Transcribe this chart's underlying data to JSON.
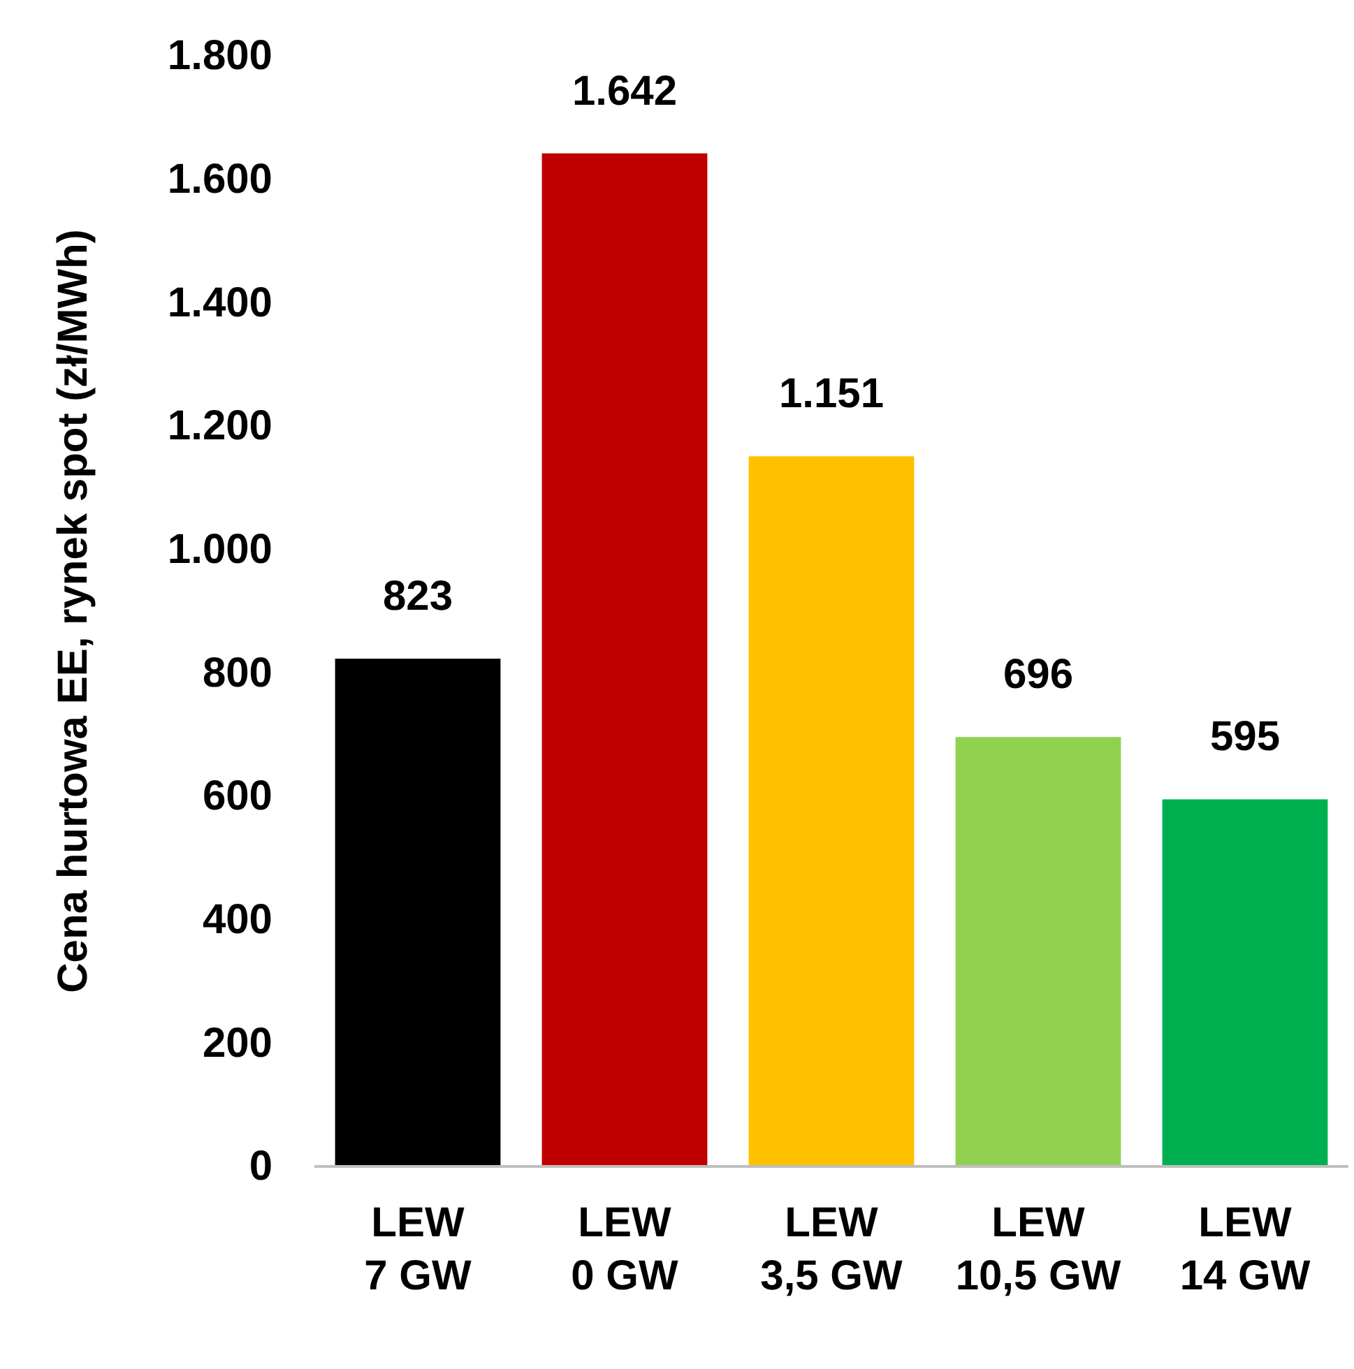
{
  "chart_data": {
    "type": "bar",
    "ylabel": "Cena hurtowa EE, rynek spot (zł/MWh)",
    "categories": [
      "LEW 7 GW",
      "LEW 0 GW",
      "LEW 3,5 GW",
      "LEW 10,5 GW",
      "LEW 14 GW"
    ],
    "values": [
      823,
      1642,
      1151,
      696,
      595
    ],
    "value_labels": [
      "823",
      "1.642",
      "1.151",
      "696",
      "595"
    ],
    "colors": [
      "#000000",
      "#c00000",
      "#ffc000",
      "#92d050",
      "#00b050"
    ],
    "ylim": [
      0,
      1800
    ],
    "yticks": [
      0,
      {
        "value": 200,
        "label": "200"
      },
      {
        "value": 400,
        "label": "400"
      },
      {
        "value": 600,
        "label": "600"
      },
      {
        "value": 800,
        "label": "800"
      },
      {
        "value": 1000,
        "label": "1.000"
      },
      {
        "value": 1200,
        "label": "1.200"
      },
      {
        "value": 1400,
        "label": "1.400"
      },
      {
        "value": 1600,
        "label": "1.600"
      },
      {
        "value": 1800,
        "label": "1.800"
      }
    ],
    "grid": false
  }
}
